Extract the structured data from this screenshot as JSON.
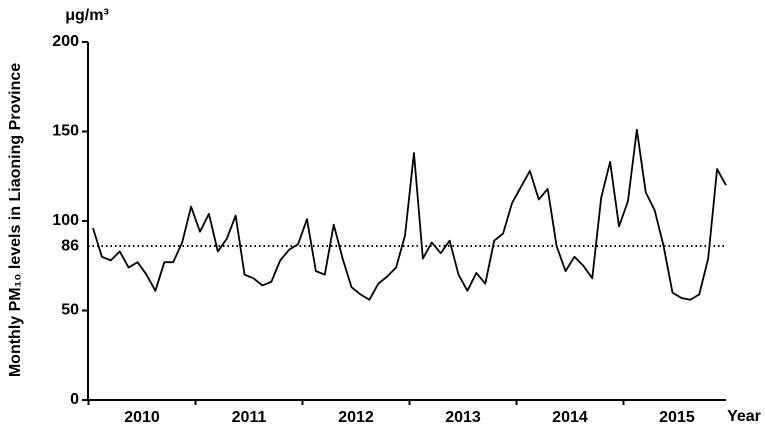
{
  "chart_data": {
    "type": "line",
    "y_label": "Monthly PM₁₀ levels in Liaoning Province",
    "unit": "μg/m³",
    "x_label": "Year",
    "years": [
      "2010",
      "2011",
      "2012",
      "2013",
      "2014",
      "2015"
    ],
    "values": [
      96,
      80,
      78,
      83,
      74,
      77,
      70,
      61,
      77,
      77,
      88,
      108,
      94,
      104,
      83,
      90,
      103,
      70,
      68,
      64,
      66,
      78,
      84,
      87,
      101,
      72,
      70,
      98,
      79,
      63,
      59,
      56,
      65,
      69,
      74,
      92,
      138,
      79,
      88,
      82,
      89,
      70,
      61,
      71,
      65,
      89,
      93,
      110,
      119,
      128,
      112,
      118,
      86,
      72,
      80,
      75,
      68,
      113,
      133,
      97,
      111,
      151,
      116,
      106,
      86,
      60,
      57,
      56,
      59,
      79,
      129,
      120
    ],
    "color": "#000000",
    "reference_line": 86,
    "ylim": [
      0,
      200
    ],
    "yticks": [
      0,
      50,
      100,
      150,
      200
    ]
  }
}
